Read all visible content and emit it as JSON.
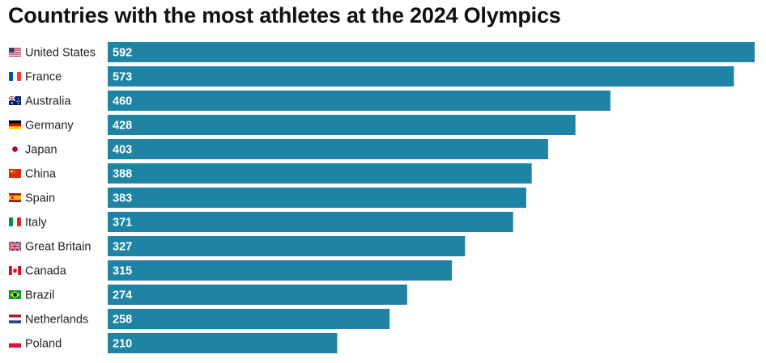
{
  "chart_data": {
    "type": "bar",
    "orientation": "horizontal",
    "title": "Countries with the most athletes at the 2024 Olympics",
    "categories": [
      "United States",
      "France",
      "Australia",
      "Germany",
      "Japan",
      "China",
      "Spain",
      "Italy",
      "Great Britain",
      "Canada",
      "Brazil",
      "Netherlands",
      "Poland"
    ],
    "flag_icons": [
      "us-flag-icon",
      "france-flag-icon",
      "australia-flag-icon",
      "germany-flag-icon",
      "japan-flag-icon",
      "china-flag-icon",
      "spain-flag-icon",
      "italy-flag-icon",
      "great-britain-flag-icon",
      "canada-flag-icon",
      "brazil-flag-icon",
      "netherlands-flag-icon",
      "poland-flag-icon"
    ],
    "values": [
      592,
      573,
      460,
      428,
      403,
      388,
      383,
      371,
      327,
      315,
      274,
      258,
      210
    ],
    "value_labels": [
      "592",
      "573",
      "460",
      "428",
      "403",
      "388",
      "383",
      "371",
      "327",
      "315",
      "274",
      "258",
      "210"
    ],
    "xlim": [
      0,
      592
    ],
    "grid": false,
    "bar_color": "#1f83a3"
  }
}
